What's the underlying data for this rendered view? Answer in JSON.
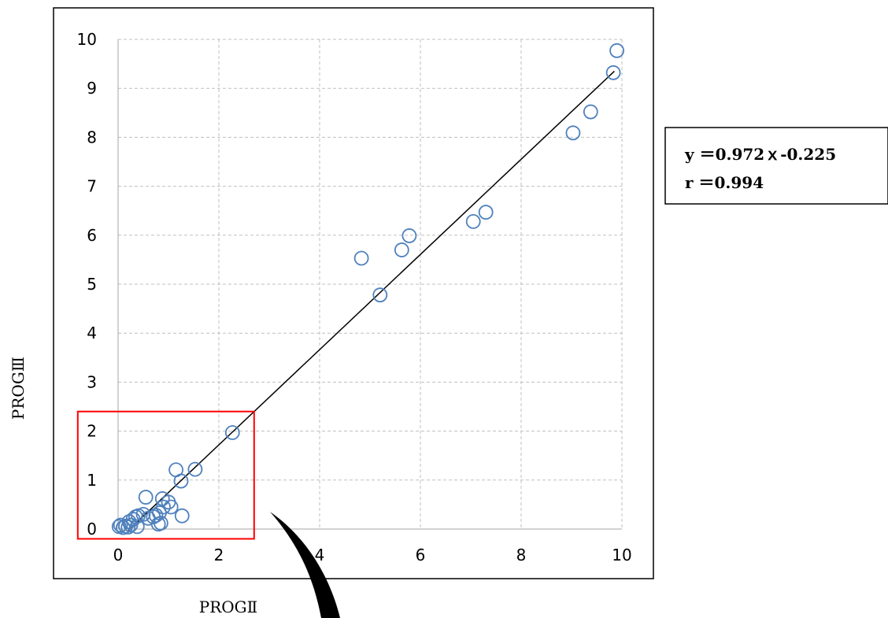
{
  "chart_data": {
    "type": "scatter",
    "xlabel": "PROGⅡ",
    "ylabel": "PROGⅢ",
    "xlim": [
      0,
      10
    ],
    "ylim": [
      0,
      10
    ],
    "xticks": [
      "0",
      "2",
      "4",
      "6",
      "8",
      "10"
    ],
    "yticks": [
      "0",
      "1",
      "2",
      "3",
      "4",
      "5",
      "6",
      "7",
      "8",
      "9",
      "10"
    ],
    "grid": true,
    "marker_color": "#4f81bd",
    "points": [
      {
        "x": 0.02,
        "y": 0.05
      },
      {
        "x": 0.05,
        "y": 0.08
      },
      {
        "x": 0.1,
        "y": 0.03
      },
      {
        "x": 0.15,
        "y": 0.06
      },
      {
        "x": 0.2,
        "y": 0.04
      },
      {
        "x": 0.22,
        "y": 0.15
      },
      {
        "x": 0.25,
        "y": 0.08
      },
      {
        "x": 0.3,
        "y": 0.2
      },
      {
        "x": 0.35,
        "y": 0.25
      },
      {
        "x": 0.38,
        "y": 0.05
      },
      {
        "x": 0.4,
        "y": 0.27
      },
      {
        "x": 0.5,
        "y": 0.3
      },
      {
        "x": 0.55,
        "y": 0.65
      },
      {
        "x": 0.6,
        "y": 0.22
      },
      {
        "x": 0.7,
        "y": 0.25
      },
      {
        "x": 0.75,
        "y": 0.28
      },
      {
        "x": 0.8,
        "y": 0.1
      },
      {
        "x": 0.82,
        "y": 0.33
      },
      {
        "x": 0.85,
        "y": 0.12
      },
      {
        "x": 0.88,
        "y": 0.62
      },
      {
        "x": 0.9,
        "y": 0.45
      },
      {
        "x": 1.0,
        "y": 0.55
      },
      {
        "x": 1.05,
        "y": 0.45
      },
      {
        "x": 1.15,
        "y": 1.21
      },
      {
        "x": 1.25,
        "y": 0.98
      },
      {
        "x": 1.27,
        "y": 0.27
      },
      {
        "x": 1.53,
        "y": 1.22
      },
      {
        "x": 2.27,
        "y": 1.97
      },
      {
        "x": 4.83,
        "y": 5.53
      },
      {
        "x": 5.2,
        "y": 4.78
      },
      {
        "x": 5.63,
        "y": 5.7
      },
      {
        "x": 5.78,
        "y": 5.99
      },
      {
        "x": 7.05,
        "y": 6.28
      },
      {
        "x": 7.3,
        "y": 6.47
      },
      {
        "x": 9.03,
        "y": 8.09
      },
      {
        "x": 9.38,
        "y": 8.52
      },
      {
        "x": 9.83,
        "y": 9.32
      },
      {
        "x": 9.9,
        "y": 9.77
      }
    ],
    "regression": {
      "slope": 0.972,
      "intercept": -0.225,
      "x_range": [
        0.2,
        9.85
      ],
      "color": "#000000"
    },
    "highlight": {
      "x_range": [
        -0.8,
        2.7
      ],
      "y_range": [
        -0.2,
        2.4
      ],
      "color": "#ff0000"
    },
    "annotation": {
      "line1": "y ＝0.972ｘ-0.225",
      "line2": "r ＝0.994"
    }
  }
}
